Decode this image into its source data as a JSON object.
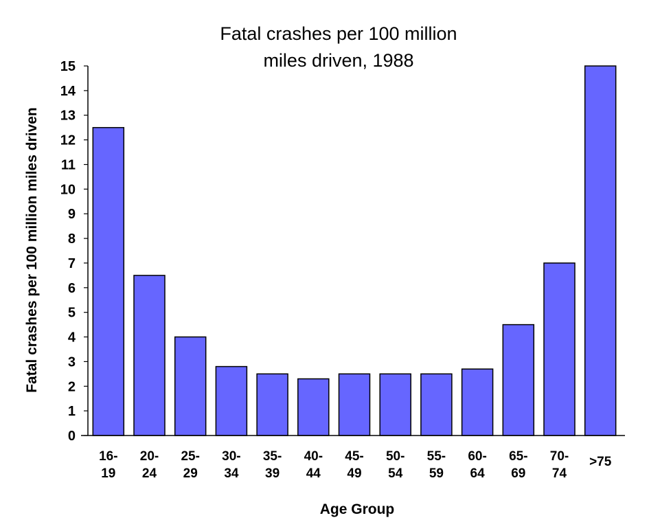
{
  "chart_data": {
    "type": "bar",
    "title_lines": [
      "Fatal crashes per 100 million",
      "miles driven, 1988"
    ],
    "xlabel": "Age Group",
    "ylabel": "Fatal crashes per 100 million miles driven",
    "categories": [
      [
        "16-",
        "19"
      ],
      [
        "20-",
        "24"
      ],
      [
        "25-",
        "29"
      ],
      [
        "30-",
        "34"
      ],
      [
        "35-",
        "39"
      ],
      [
        "40-",
        "44"
      ],
      [
        "45-",
        "49"
      ],
      [
        "50-",
        "54"
      ],
      [
        "55-",
        "59"
      ],
      [
        "60-",
        "64"
      ],
      [
        "65-",
        "69"
      ],
      [
        "70-",
        "74"
      ],
      [
        ">75"
      ]
    ],
    "values": [
      12.5,
      6.5,
      4.0,
      2.8,
      2.5,
      2.3,
      2.5,
      2.5,
      2.5,
      2.7,
      4.5,
      7.0,
      15.0
    ],
    "ylim": [
      0,
      15
    ],
    "yticks": [
      0,
      1,
      2,
      3,
      4,
      5,
      6,
      7,
      8,
      9,
      10,
      11,
      12,
      13,
      14,
      15
    ],
    "grid": false,
    "legend": "none",
    "bar_color": "#6666ff",
    "bar_edge_color": "#000000"
  }
}
